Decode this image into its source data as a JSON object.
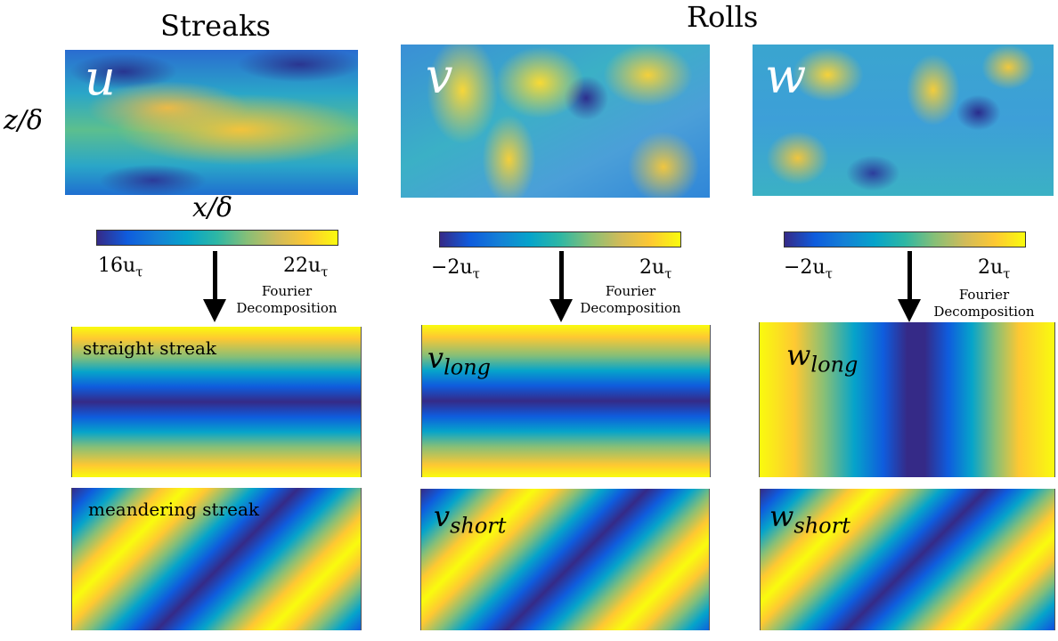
{
  "headings": {
    "left": "Streaks",
    "right": "Rolls"
  },
  "axes": {
    "z": "z/δ",
    "x": "x/δ"
  },
  "fields": [
    {
      "symbol": "u",
      "cbar_min": "16u",
      "cbar_max": "22u",
      "sub": "τ"
    },
    {
      "symbol": "v",
      "cbar_min": "−2u",
      "cbar_max": "2u",
      "sub": "τ"
    },
    {
      "symbol": "w",
      "cbar_min": "−2u",
      "cbar_max": "2u",
      "sub": "τ"
    }
  ],
  "decomposition": {
    "line1": "Fourier",
    "line2": "Decomposition"
  },
  "modes": {
    "straight": "straight streak",
    "meandering": "meandering streak",
    "v_long": {
      "base": "v",
      "sub": "long"
    },
    "v_short": {
      "base": "v",
      "sub": "short"
    },
    "w_long": {
      "base": "w",
      "sub": "long"
    },
    "w_short": {
      "base": "w",
      "sub": "short"
    }
  },
  "colormap": [
    "#352a87",
    "#0f5cdd",
    "#06a4ca",
    "#87bf77",
    "#fec832",
    "#f9fb0e"
  ]
}
